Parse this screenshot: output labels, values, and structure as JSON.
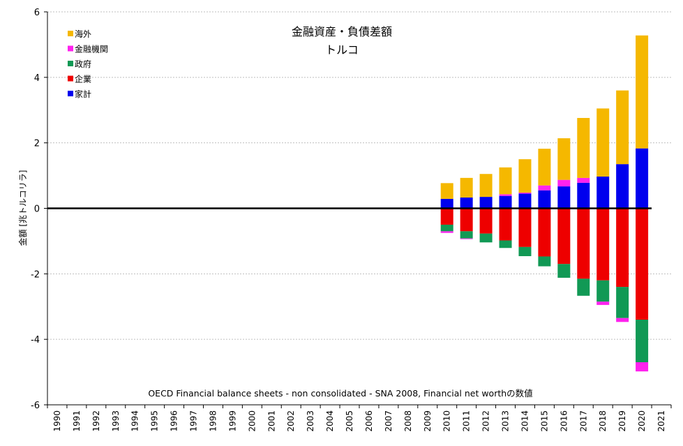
{
  "chart_data": {
    "type": "bar",
    "stacked": true,
    "title": "金融資産・負債差額",
    "subtitle": "トルコ",
    "ylabel": "金額 [兆トルコリラ]",
    "xlabel": "",
    "ylim": [
      -6,
      6
    ],
    "yticks": [
      -6,
      -4,
      -2,
      0,
      2,
      4,
      6
    ],
    "grid": true,
    "legend_position": "top-left",
    "source_note": "OECD Financial balance sheets - non consolidated - SNA 2008, Financial net worthの数値",
    "categories": [
      "1990",
      "1991",
      "1992",
      "1993",
      "1994",
      "1995",
      "1996",
      "1997",
      "1998",
      "1999",
      "2000",
      "2001",
      "2002",
      "2003",
      "2004",
      "2005",
      "2006",
      "2007",
      "2008",
      "2009",
      "2010",
      "2011",
      "2012",
      "2013",
      "2014",
      "2015",
      "2016",
      "2017",
      "2018",
      "2019",
      "2020",
      "2021"
    ],
    "series": [
      {
        "name": "家計",
        "color": "#0000ee",
        "values": [
          null,
          null,
          null,
          null,
          null,
          null,
          null,
          null,
          null,
          null,
          null,
          null,
          null,
          null,
          null,
          null,
          null,
          null,
          null,
          null,
          0.29,
          0.33,
          0.35,
          0.38,
          0.45,
          0.55,
          0.67,
          0.78,
          0.97,
          1.35,
          1.83,
          null
        ]
      },
      {
        "name": "企業",
        "color": "#ee0000",
        "values": [
          null,
          null,
          null,
          null,
          null,
          null,
          null,
          null,
          null,
          null,
          null,
          null,
          null,
          null,
          null,
          null,
          null,
          null,
          null,
          null,
          -0.5,
          -0.7,
          -0.77,
          -0.98,
          -1.18,
          -1.47,
          -1.7,
          -2.15,
          -2.2,
          -2.4,
          -3.4,
          null
        ]
      },
      {
        "name": "政府",
        "color": "#119955",
        "values": [
          null,
          null,
          null,
          null,
          null,
          null,
          null,
          null,
          null,
          null,
          null,
          null,
          null,
          null,
          null,
          null,
          null,
          null,
          null,
          null,
          -0.2,
          -0.22,
          -0.27,
          -0.23,
          -0.28,
          -0.3,
          -0.42,
          -0.52,
          -0.65,
          -0.95,
          -1.3,
          null
        ]
      },
      {
        "name": "金融機関",
        "color": "#ff22ee",
        "values": [
          null,
          null,
          null,
          null,
          null,
          null,
          null,
          null,
          null,
          null,
          null,
          null,
          null,
          null,
          null,
          null,
          null,
          null,
          null,
          null,
          -0.05,
          -0.02,
          0.0,
          0.05,
          0.03,
          0.15,
          0.2,
          0.15,
          -0.1,
          -0.12,
          -0.28,
          null
        ]
      },
      {
        "name": "海外",
        "color": "#f5b800",
        "values": [
          null,
          null,
          null,
          null,
          null,
          null,
          null,
          null,
          null,
          null,
          null,
          null,
          null,
          null,
          null,
          null,
          null,
          null,
          null,
          null,
          0.48,
          0.6,
          0.7,
          0.82,
          1.02,
          1.12,
          1.27,
          1.83,
          2.08,
          2.25,
          3.45,
          null
        ]
      }
    ]
  }
}
